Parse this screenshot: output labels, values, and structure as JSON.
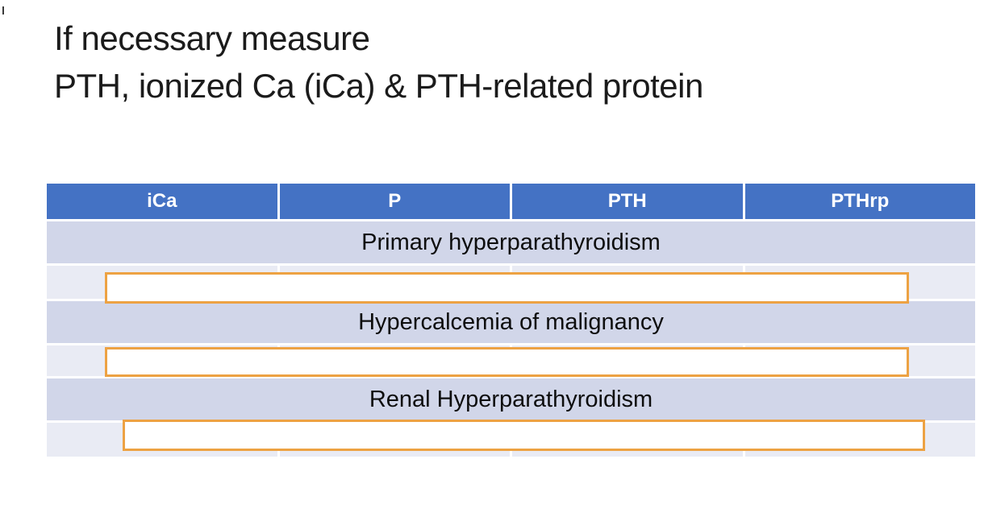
{
  "title": {
    "line1": "If necessary measure",
    "line2": "PTH, ionized Ca (iCa) & PTH-related protein"
  },
  "table": {
    "columns": [
      "iCa",
      "P",
      "PTH",
      "PTHrp"
    ],
    "sections": [
      {
        "label": "Primary hyperparathyroidism"
      },
      {
        "label": "Hypercalcemia of malignancy"
      },
      {
        "label": "Renal Hyperparathyroidism"
      }
    ],
    "answer_boxes": 3
  },
  "colors": {
    "header_bg": "#4472c4",
    "header_text": "#ffffff",
    "section_band_bg": "#d1d6e9",
    "empty_row_bg": "#e9ebf4",
    "answer_box_border": "#eda243",
    "answer_box_fill": "#ffffff",
    "title_text": "#1b1b1b"
  }
}
